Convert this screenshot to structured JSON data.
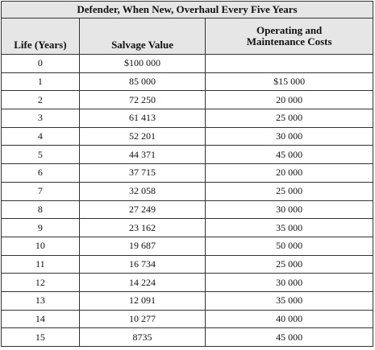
{
  "table": {
    "title": "Defender, When New, Overhaul Every Five Years",
    "columns": [
      "Life (Years)",
      "Salvage Value",
      "Operating and Maintenance Costs"
    ],
    "rows": [
      {
        "life": "0",
        "salvage": "$100 000",
        "om": ""
      },
      {
        "life": "1",
        "salvage": "85 000",
        "om": "$15 000"
      },
      {
        "life": "2",
        "salvage": "72 250",
        "om": "20 000"
      },
      {
        "life": "3",
        "salvage": "61 413",
        "om": "25 000"
      },
      {
        "life": "4",
        "salvage": "52 201",
        "om": "30 000"
      },
      {
        "life": "5",
        "salvage": "44 371",
        "om": "45 000"
      },
      {
        "life": "6",
        "salvage": "37 715",
        "om": "20 000"
      },
      {
        "life": "7",
        "salvage": "32 058",
        "om": "25 000"
      },
      {
        "life": "8",
        "salvage": "27 249",
        "om": "30 000"
      },
      {
        "life": "9",
        "salvage": "23 162",
        "om": "35 000"
      },
      {
        "life": "10",
        "salvage": "19 687",
        "om": "50 000"
      },
      {
        "life": "11",
        "salvage": "16 734",
        "om": "25 000"
      },
      {
        "life": "12",
        "salvage": "14 224",
        "om": "30 000"
      },
      {
        "life": "13",
        "salvage": "12 091",
        "om": "35 000"
      },
      {
        "life": "14",
        "salvage": "10 277",
        "om": "40 000"
      },
      {
        "life": "15",
        "salvage": "8735",
        "om": "45 000"
      }
    ]
  }
}
